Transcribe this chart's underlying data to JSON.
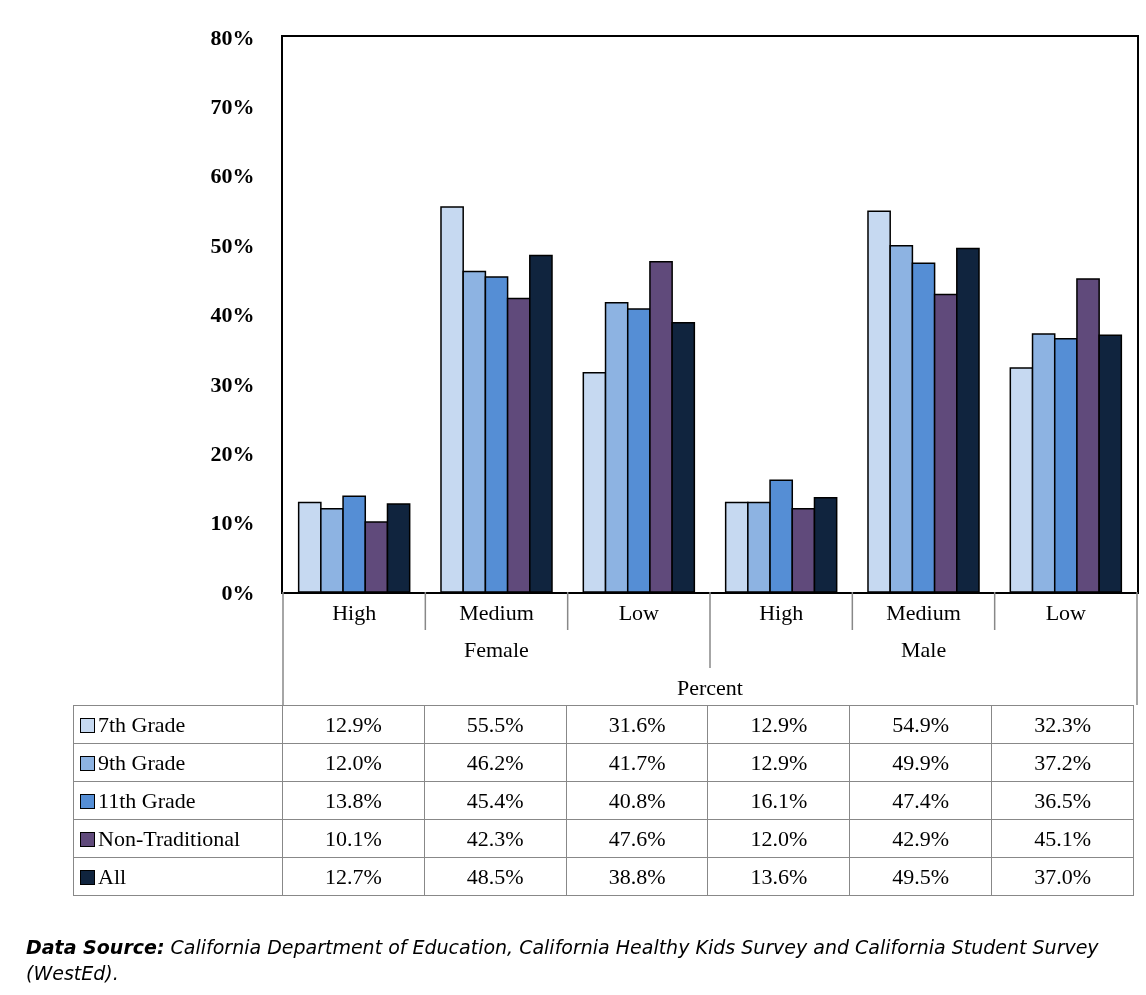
{
  "chart_data": {
    "type": "bar",
    "categories": [
      "High",
      "Medium",
      "Low",
      "High",
      "Medium",
      "Low"
    ],
    "xlabel": "Percent",
    "series": [
      {
        "name": "7th Grade",
        "color": "#c6d9f1",
        "values": [
          12.9,
          55.5,
          31.6,
          12.9,
          54.9,
          32.3
        ],
        "value_labels": [
          "12.9%",
          "55.5%",
          "31.6%",
          "12.9%",
          "54.9%",
          "32.3%"
        ]
      },
      {
        "name": "9th Grade",
        "color": "#8db3e2",
        "values": [
          12.0,
          46.2,
          41.7,
          12.9,
          49.9,
          37.2
        ],
        "value_labels": [
          "12.0%",
          "46.2%",
          "41.7%",
          "12.9%",
          "49.9%",
          "37.2%"
        ]
      },
      {
        "name": "11th Grade",
        "color": "#558ed5",
        "values": [
          13.8,
          45.4,
          40.8,
          16.1,
          47.4,
          36.5
        ],
        "value_labels": [
          "13.8%",
          "45.4%",
          "40.8%",
          "16.1%",
          "47.4%",
          "36.5%"
        ]
      },
      {
        "name": "Non-Traditional",
        "color": "#604a7b",
        "values": [
          10.1,
          42.3,
          47.6,
          12.0,
          42.9,
          45.1
        ],
        "value_labels": [
          "10.1%",
          "42.3%",
          "47.6%",
          "12.0%",
          "42.9%",
          "45.1%"
        ]
      },
      {
        "name": "All",
        "color": "#10243e",
        "values": [
          12.7,
          48.5,
          38.8,
          13.6,
          49.5,
          37.0
        ],
        "value_labels": [
          "12.7%",
          "48.5%",
          "38.8%",
          "13.6%",
          "49.5%",
          "37.0%"
        ]
      }
    ],
    "ylim": [
      0,
      80
    ],
    "yticks": [
      {
        "value": 0,
        "label": "0%"
      },
      {
        "value": 10,
        "label": "10%"
      },
      {
        "value": 20,
        "label": "20%"
      },
      {
        "value": 30,
        "label": "30%"
      },
      {
        "value": 40,
        "label": "40%"
      },
      {
        "value": 50,
        "label": "50%"
      },
      {
        "value": 60,
        "label": "60%"
      },
      {
        "value": 70,
        "label": "70%"
      },
      {
        "value": 80,
        "label": "80%"
      }
    ],
    "grid": false,
    "legend": "bottom",
    "annotations": [
      "Female",
      "Male",
      "Data Source: California Department of Education, California Healthy Kids Survey and California Student Survey (WestEd)."
    ]
  }
}
